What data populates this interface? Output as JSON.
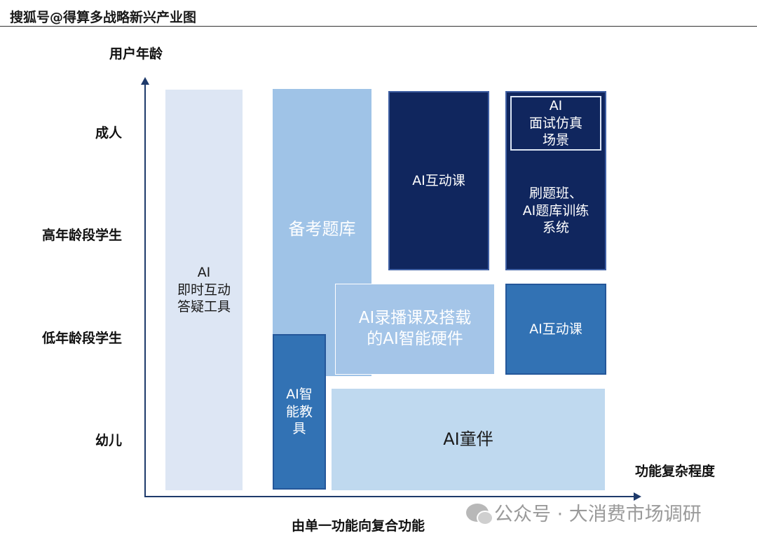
{
  "header": {
    "text": "搜狐号@得算多战略新兴产业图"
  },
  "axes": {
    "y_title": "用户年龄",
    "x_title": "功能复杂程度",
    "x_caption": "由单一功能向复合功能",
    "y_levels": [
      "成人",
      "高年龄段学生",
      "低年龄段学生",
      "幼儿"
    ]
  },
  "blocks": {
    "instant_qa": "AI\n即时互动\n答疑工具",
    "exam_bank": "备考题库",
    "smart_toy": "AI智\n能教\n具",
    "interactive_dark": "AI互动课",
    "interview_sim": "AI\n面试仿真\n场景",
    "drill_system": "刷题班、\nAI题库训练\n系统",
    "recorded_hardware": "AI录播课及搭载\n的AI智能硬件",
    "interactive_blue": "AI互动课",
    "companion": "AI童伴"
  },
  "watermark": {
    "text": "公众号 · 大消费市场调研"
  },
  "colors": {
    "dark_navy": "#10265e",
    "mid_blue": "#3272b4",
    "light_blue": "#9fc3e7",
    "pale_blue": "#bfd9ef",
    "very_light": "#dde6f4",
    "axis": "#1e3a6b"
  }
}
